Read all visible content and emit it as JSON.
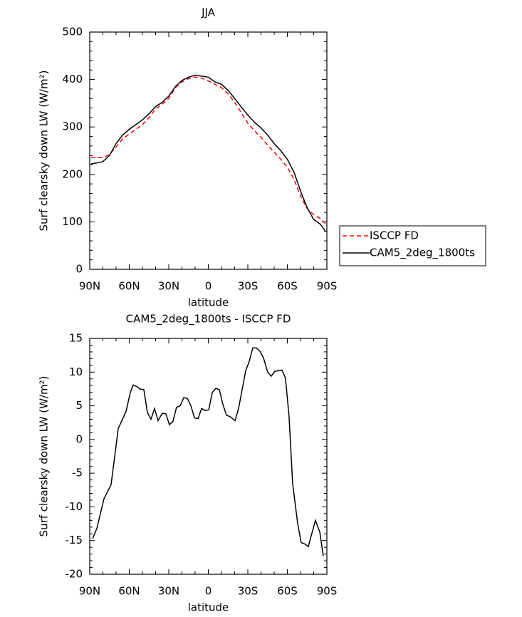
{
  "chart_data": [
    {
      "type": "line",
      "title": "JJA",
      "xlabel": "latitude",
      "ylabel": "Surf clearsky down LW (W/m²)",
      "x": [
        89,
        85,
        80,
        75,
        70,
        65,
        60,
        55,
        50,
        45,
        40,
        35,
        30,
        25,
        20,
        15,
        10,
        5,
        0,
        -5,
        -10,
        -15,
        -20,
        -25,
        -30,
        -35,
        -40,
        -45,
        -50,
        -55,
        -60,
        -65,
        -70,
        -75,
        -80,
        -85,
        -89
      ],
      "series": [
        {
          "name": "ISCCP FD",
          "color": "#ff0000",
          "dashed": true,
          "values": [
            236,
            236,
            235,
            242,
            258,
            275,
            285,
            295,
            305,
            320,
            338,
            348,
            360,
            383,
            395,
            402,
            405,
            403,
            397,
            390,
            383,
            370,
            352,
            330,
            308,
            292,
            278,
            262,
            247,
            232,
            215,
            190,
            155,
            128,
            115,
            107,
            96
          ]
        },
        {
          "name": "CAM5_2deg_1800ts",
          "color": "#000000",
          "dashed": false,
          "values": [
            222,
            224,
            227,
            240,
            265,
            283,
            295,
            305,
            315,
            328,
            343,
            352,
            365,
            385,
            398,
            405,
            409,
            407,
            405,
            395,
            390,
            377,
            360,
            342,
            325,
            310,
            298,
            283,
            265,
            250,
            232,
            205,
            165,
            130,
            105,
            95,
            80
          ]
        }
      ],
      "xlim": [
        90,
        -90
      ],
      "xticks": [
        {
          "value": 90,
          "label": "90N"
        },
        {
          "value": 60,
          "label": "60N"
        },
        {
          "value": 30,
          "label": "30N"
        },
        0,
        {
          "value": -30,
          "label": "30S"
        },
        {
          "value": -60,
          "label": "60S"
        },
        {
          "value": -90,
          "label": "90S"
        }
      ],
      "ylim": [
        0,
        500
      ],
      "yticks": [
        0,
        100,
        200,
        300,
        400,
        500
      ],
      "legend": "outside-right"
    },
    {
      "type": "line",
      "title": "CAM5_2deg_1800ts - ISCCP FD",
      "xlabel": "latitude",
      "ylabel": "Surf clearsky down LW (W/m²)",
      "x": [
        87.8,
        84.6,
        79.2,
        73.8,
        68.4,
        62.4,
        59.2,
        57.0,
        53.8,
        52.2,
        48.9,
        46.2,
        43.5,
        40.8,
        38.1,
        34.9,
        32.2,
        29.5,
        26.8,
        24.1,
        21.4,
        18.6,
        15.9,
        13.2,
        10.5,
        7.8,
        5.1,
        2.4,
        -0.3,
        -3.0,
        -5.7,
        -8.4,
        -11.1,
        -13.8,
        -16.5,
        -20.3,
        -23.0,
        -28.4,
        -31.1,
        -33.8,
        -36.5,
        -39.2,
        -41.9,
        -45.1,
        -47.8,
        -50.5,
        -55.9,
        -58.6,
        -61.3,
        -64.0,
        -67.8,
        -70.5,
        -73.2,
        -75.9,
        -81.3,
        -84.6,
        -87.3
      ],
      "values": [
        -14.7,
        -13.2,
        -8.8,
        -6.7,
        1.6,
        4.2,
        7,
        8.1,
        7.8,
        7.5,
        7.4,
        4,
        3,
        4.6,
        2.8,
        3.9,
        3.8,
        2.2,
        2.7,
        4.8,
        5,
        6.2,
        6.1,
        5,
        3.2,
        3.1,
        4.6,
        4.3,
        4.4,
        7,
        7.6,
        7.4,
        5.2,
        3.6,
        3.4,
        2.8,
        4.6,
        10.2,
        11.6,
        13.6,
        13.6,
        13.1,
        12.1,
        10,
        9.4,
        10.1,
        10.3,
        9.1,
        3.4,
        -6.5,
        -12.4,
        -15.3,
        -15.5,
        -15.9,
        -12,
        -13.7,
        -17.3
      ],
      "color": "#000000",
      "xlim": [
        90,
        -90
      ],
      "xticks": [
        {
          "value": 90,
          "label": "90N"
        },
        {
          "value": 60,
          "label": "60N"
        },
        {
          "value": 30,
          "label": "30N"
        },
        0,
        {
          "value": -30,
          "label": "30S"
        },
        {
          "value": -60,
          "label": "60S"
        },
        {
          "value": -90,
          "label": "90S"
        }
      ],
      "ylim": [
        -20,
        15
      ],
      "yticks": [
        -20,
        -15,
        -10,
        -5,
        0,
        5,
        10,
        15
      ]
    }
  ]
}
